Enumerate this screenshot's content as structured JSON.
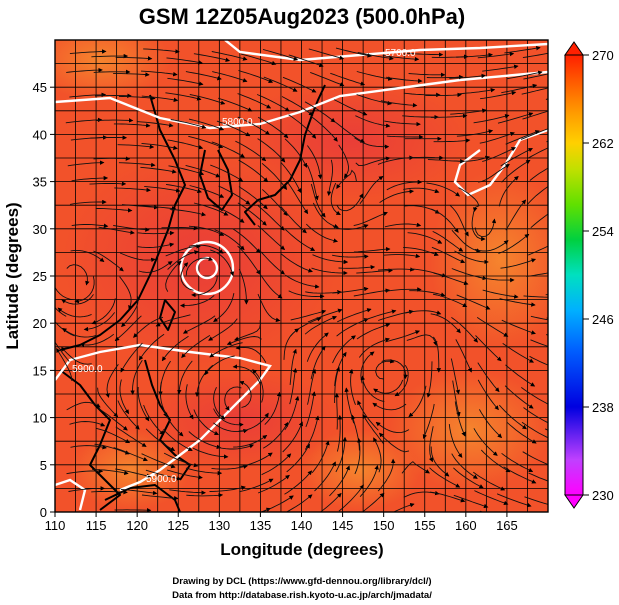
{
  "title": "GSM 12Z05Aug2023 (500.0hPa)",
  "xlabel": "Longitude (degrees)",
  "ylabel": "Latitude  (degrees)",
  "x_ticks": [
    "110",
    "115",
    "120",
    "125",
    "130",
    "135",
    "140",
    "145",
    "150",
    "155",
    "160",
    "165"
  ],
  "y_ticks": [
    "0",
    "5",
    "10",
    "15",
    "20",
    "25",
    "30",
    "35",
    "40",
    "45"
  ],
  "colorbar": {
    "ticks": [
      "270",
      "262",
      "254",
      "246",
      "238",
      "230"
    ],
    "colors": [
      "#ff00ff",
      "#c040ff",
      "#0000e0",
      "#0060ff",
      "#00b0ff",
      "#00e0c0",
      "#00d040",
      "#60e000",
      "#c0e000",
      "#ffd000",
      "#ff9a00",
      "#ff5a00",
      "#ff2000"
    ]
  },
  "credits": {
    "line1": "Drawing by DCL (https://www.gfd-dennou.org/library/dcl/)",
    "line2": "Data from http://database.rish.kyoto-u.ac.jp/arch/jmadata/"
  },
  "contour_labels": [
    "5700.0",
    "5800.0",
    "5900.0",
    "5900.0",
    "5900.0"
  ],
  "map_colors": {
    "background": "#f2522a",
    "warm": "#f4762c",
    "hot": "#e83a3a",
    "coast": "#000000",
    "contour": "#ffffff",
    "grid": "#000000"
  }
}
